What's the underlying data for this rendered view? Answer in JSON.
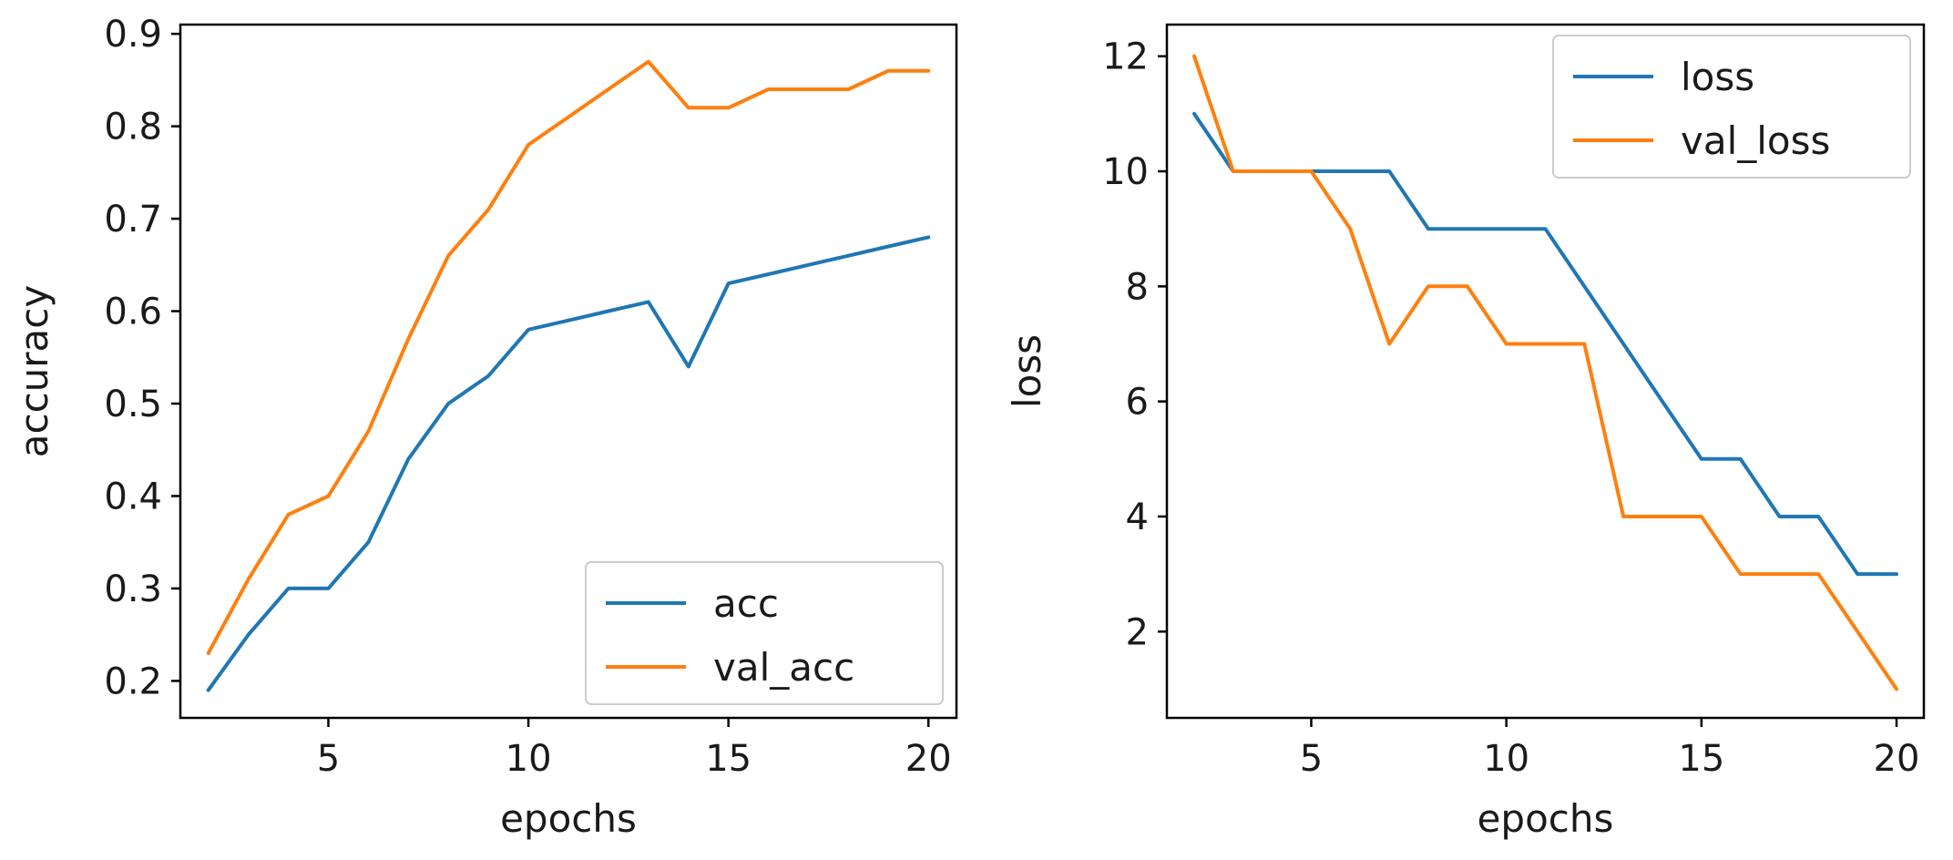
{
  "chart_data": [
    {
      "type": "line",
      "title": "",
      "xlabel": "epochs",
      "ylabel": "accuracy",
      "xlim": [
        1.3,
        20.7
      ],
      "ylim": [
        0.16,
        0.91
      ],
      "xticks": [
        5,
        10,
        15,
        20
      ],
      "yticks": [
        0.2,
        0.3,
        0.4,
        0.5,
        0.6,
        0.7,
        0.8,
        0.9
      ],
      "ytick_labels": [
        "0.2",
        "0.3",
        "0.4",
        "0.5",
        "0.6",
        "0.7",
        "0.8",
        "0.9"
      ],
      "legend_position": "bottom-right",
      "grid": false,
      "x": [
        2,
        3,
        4,
        5,
        6,
        7,
        8,
        9,
        10,
        11,
        12,
        13,
        14,
        15,
        16,
        17,
        18,
        19,
        20
      ],
      "series": [
        {
          "name": "acc",
          "color": "#1f77b4",
          "values": [
            0.19,
            0.25,
            0.3,
            0.3,
            0.35,
            0.44,
            0.5,
            0.53,
            0.58,
            0.59,
            0.6,
            0.61,
            0.54,
            0.63,
            0.64,
            0.65,
            0.66,
            0.67,
            0.68
          ]
        },
        {
          "name": "val_acc",
          "color": "#ff7f0e",
          "values": [
            0.23,
            0.31,
            0.38,
            0.4,
            0.47,
            0.57,
            0.66,
            0.71,
            0.78,
            0.81,
            0.84,
            0.87,
            0.82,
            0.82,
            0.84,
            0.84,
            0.84,
            0.86,
            0.86
          ]
        }
      ]
    },
    {
      "type": "line",
      "title": "",
      "xlabel": "epochs",
      "ylabel": "loss",
      "xlim": [
        1.3,
        20.7
      ],
      "ylim": [
        0.5,
        12.55
      ],
      "xticks": [
        5,
        10,
        15,
        20
      ],
      "yticks": [
        2,
        4,
        6,
        8,
        10,
        12
      ],
      "ytick_labels": [
        "2",
        "4",
        "6",
        "8",
        "10",
        "12"
      ],
      "legend_position": "top-right",
      "grid": false,
      "x": [
        2,
        3,
        4,
        5,
        6,
        7,
        8,
        9,
        10,
        11,
        12,
        13,
        14,
        15,
        16,
        17,
        18,
        19,
        20
      ],
      "series": [
        {
          "name": "loss",
          "color": "#1f77b4",
          "values": [
            11,
            10,
            10,
            10,
            10,
            10,
            9,
            9,
            9,
            9,
            8,
            7,
            6,
            5,
            5,
            4,
            4,
            3,
            3
          ]
        },
        {
          "name": "val_loss",
          "color": "#ff7f0e",
          "values": [
            12,
            10,
            10,
            10,
            9,
            7,
            8,
            8,
            7,
            7,
            7,
            4,
            4,
            4,
            3,
            3,
            3,
            2,
            1
          ]
        }
      ]
    }
  ]
}
